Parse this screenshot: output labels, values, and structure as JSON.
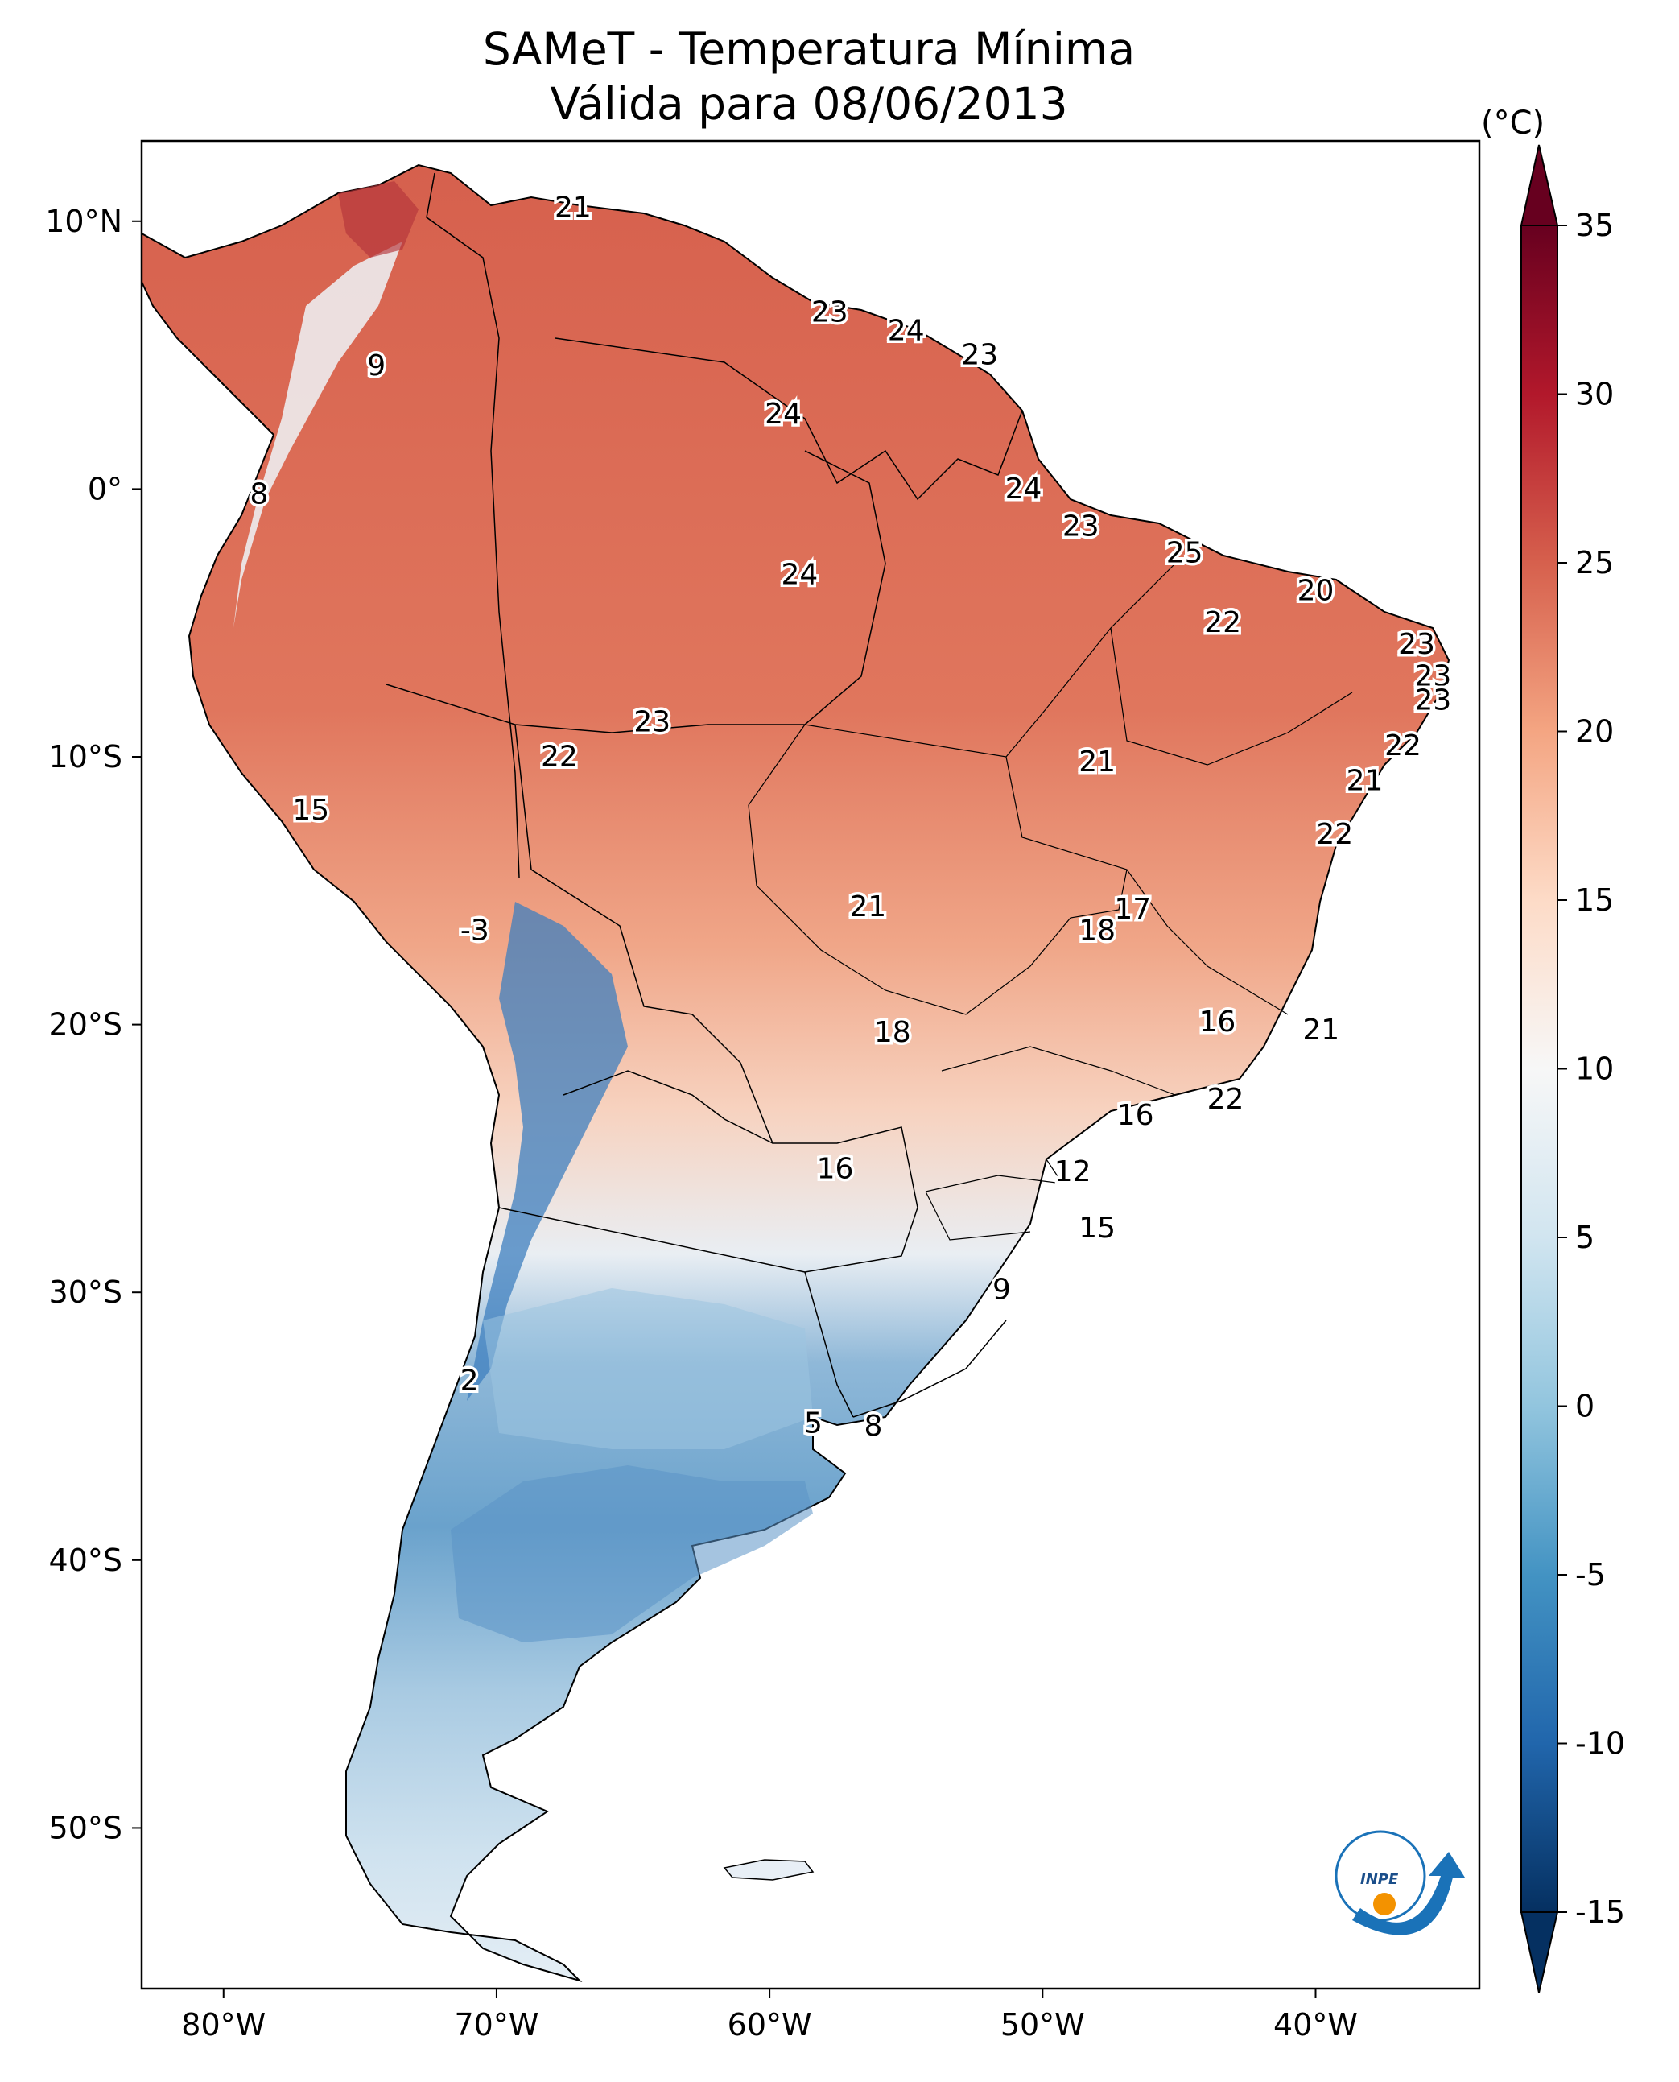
{
  "title": {
    "line1": "SAMeT - Temperatura Mínima",
    "line2": "Válida para 08/06/2013"
  },
  "map": {
    "lon_range": [
      -83,
      -34
    ],
    "lat_range": [
      -56,
      13
    ],
    "lon_ticks": [
      {
        "value": -80,
        "label": "80°W"
      },
      {
        "value": -70,
        "label": "70°W"
      },
      {
        "value": -60,
        "label": "60°W"
      },
      {
        "value": -50,
        "label": "50°W"
      },
      {
        "value": -40,
        "label": "40°W"
      }
    ],
    "lat_ticks": [
      {
        "value": 10,
        "label": "10°N"
      },
      {
        "value": 0,
        "label": "0°"
      },
      {
        "value": -10,
        "label": "10°S"
      },
      {
        "value": -20,
        "label": "20°S"
      },
      {
        "value": -30,
        "label": "30°S"
      },
      {
        "value": -40,
        "label": "40°S"
      },
      {
        "value": -50,
        "label": "50°S"
      }
    ],
    "labels": [
      {
        "lon": -67.2,
        "lat": 10.5,
        "text": "21"
      },
      {
        "lon": -57.8,
        "lat": 6.6,
        "text": "23"
      },
      {
        "lon": -55.0,
        "lat": 5.9,
        "text": "24"
      },
      {
        "lon": -52.3,
        "lat": 5.0,
        "text": "23"
      },
      {
        "lon": -74.4,
        "lat": 4.6,
        "text": "9"
      },
      {
        "lon": -59.5,
        "lat": 2.8,
        "text": "24"
      },
      {
        "lon": -78.7,
        "lat": -0.2,
        "text": "8"
      },
      {
        "lon": -50.7,
        "lat": 0.0,
        "text": "24"
      },
      {
        "lon": -48.6,
        "lat": -1.4,
        "text": "23"
      },
      {
        "lon": -44.8,
        "lat": -2.4,
        "text": "25"
      },
      {
        "lon": -58.9,
        "lat": -3.2,
        "text": "24"
      },
      {
        "lon": -40.0,
        "lat": -3.8,
        "text": "20"
      },
      {
        "lon": -43.4,
        "lat": -5.0,
        "text": "22"
      },
      {
        "lon": -36.3,
        "lat": -5.8,
        "text": "23"
      },
      {
        "lon": -35.7,
        "lat": -7.0,
        "text": "23"
      },
      {
        "lon": -35.7,
        "lat": -7.9,
        "text": "23"
      },
      {
        "lon": -64.3,
        "lat": -8.7,
        "text": "23"
      },
      {
        "lon": -36.8,
        "lat": -9.6,
        "text": "22"
      },
      {
        "lon": -67.7,
        "lat": -10.0,
        "text": "22"
      },
      {
        "lon": -48.0,
        "lat": -10.2,
        "text": "21"
      },
      {
        "lon": -38.2,
        "lat": -10.9,
        "text": "21"
      },
      {
        "lon": -76.8,
        "lat": -12.0,
        "text": "15"
      },
      {
        "lon": -39.3,
        "lat": -12.9,
        "text": "22"
      },
      {
        "lon": -46.7,
        "lat": -15.7,
        "text": "17"
      },
      {
        "lon": -56.4,
        "lat": -15.6,
        "text": "21"
      },
      {
        "lon": -48.0,
        "lat": -16.5,
        "text": "18"
      },
      {
        "lon": -70.8,
        "lat": -16.5,
        "text": "-3"
      },
      {
        "lon": -43.6,
        "lat": -19.9,
        "text": "16"
      },
      {
        "lon": -39.8,
        "lat": -20.2,
        "text": "21"
      },
      {
        "lon": -55.5,
        "lat": -20.3,
        "text": "18"
      },
      {
        "lon": -43.3,
        "lat": -22.8,
        "text": "22"
      },
      {
        "lon": -46.6,
        "lat": -23.4,
        "text": "16"
      },
      {
        "lon": -57.6,
        "lat": -25.4,
        "text": "16"
      },
      {
        "lon": -48.9,
        "lat": -25.5,
        "text": "12"
      },
      {
        "lon": -48.0,
        "lat": -27.6,
        "text": "15"
      },
      {
        "lon": -51.5,
        "lat": -29.9,
        "text": "9"
      },
      {
        "lon": -71.0,
        "lat": -33.3,
        "text": "2"
      },
      {
        "lon": -58.4,
        "lat": -34.9,
        "text": "5"
      },
      {
        "lon": -56.2,
        "lat": -35.0,
        "text": "8"
      }
    ]
  },
  "colorbar": {
    "unit": "(°C)",
    "range": [
      -15,
      35
    ],
    "tick_labels": [
      "35",
      "30",
      "25",
      "20",
      "15",
      "10",
      "5",
      "0",
      "-5",
      "-10",
      "-15"
    ],
    "colors": [
      "#053061",
      "#2166ac",
      "#4393c3",
      "#92c5de",
      "#d1e5f0",
      "#f7f7f7",
      "#fddbc7",
      "#f4a582",
      "#d6604d",
      "#b2182b",
      "#67001f"
    ]
  },
  "logo": {
    "text": "INPE",
    "colors": {
      "blue": "#1a72b8",
      "orange": "#f39200"
    }
  }
}
